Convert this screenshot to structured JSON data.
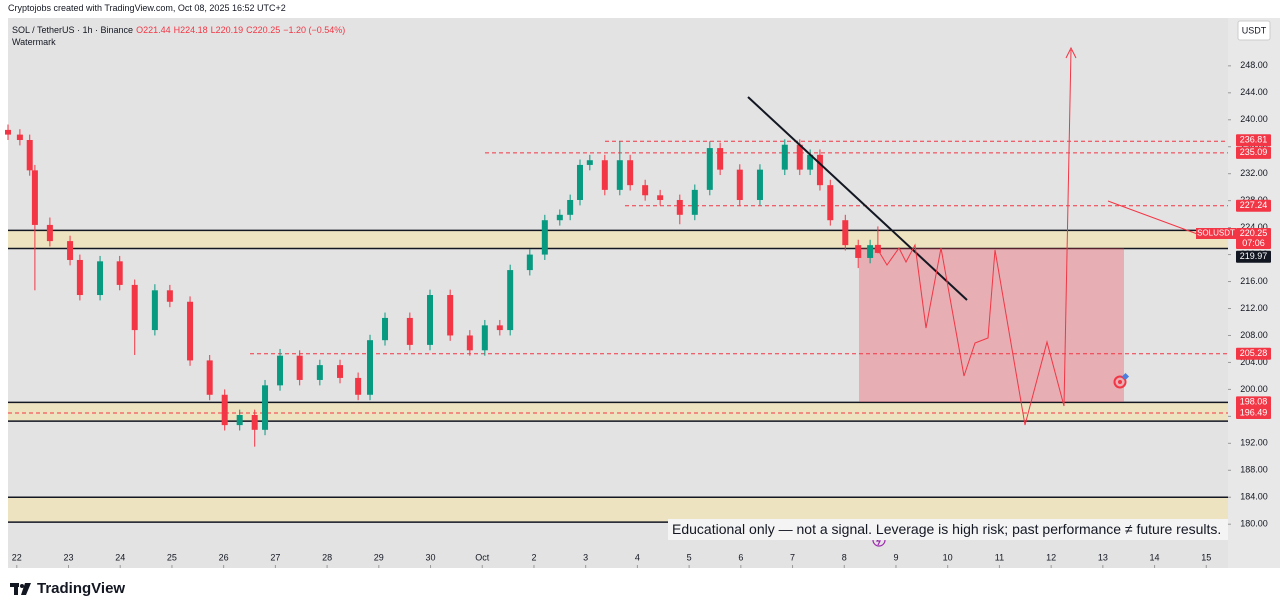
{
  "header": {
    "attribution": "Cryptojobs created with TradingView.com, Oct 08, 2025 16:52 UTC+2"
  },
  "chart_data": {
    "type": "candlestick",
    "symbol": "SOL / TetherUS · 1h · Binance",
    "quote": [
      "O221.44",
      "H224.18",
      "L220.19",
      "C220.25",
      "−1.20 (−0.54%)"
    ],
    "watermark": "Watermark",
    "currency": "USDT",
    "up_color": "#089981",
    "down_color": "#f23645",
    "x": [
      -0.17,
      0.06,
      0.25,
      0.35,
      0.64,
      1.03,
      1.22,
      1.61,
      1.99,
      2.28,
      2.67,
      2.96,
      3.35,
      3.73,
      4.02,
      4.31,
      4.6,
      4.8,
      5.09,
      5.47,
      5.86,
      6.25,
      6.6,
      6.83,
      7.12,
      7.6,
      7.99,
      8.38,
      8.76,
      9.05,
      9.34,
      9.54,
      9.92,
      10.21,
      10.5,
      10.7,
      10.89,
      11.08,
      11.37,
      11.66,
      11.86,
      12.15,
      12.44,
      12.82,
      13.11,
      13.4,
      13.6,
      13.98,
      14.37,
      14.85,
      15.14,
      15.34,
      15.53,
      15.73,
      16.02,
      16.27,
      16.5,
      16.65
    ],
    "open": [
      238.5,
      237.8,
      237,
      232.5,
      224.4,
      222,
      219.2,
      214,
      219,
      215.5,
      208.8,
      214.7,
      213,
      204.3,
      199.2,
      194.7,
      196.2,
      194,
      200.6,
      205,
      201.4,
      203.6,
      201.7,
      199.2,
      207.3,
      210.6,
      206.6,
      214,
      208,
      205.8,
      209.5,
      208.8,
      217.7,
      220,
      225.1,
      225.9,
      228.1,
      233.3,
      234,
      229.6,
      234,
      230.3,
      228.8,
      228.1,
      225.9,
      229.6,
      235.8,
      232.6,
      228.1,
      232.6,
      236.3,
      232.6,
      234.8,
      230.3,
      225.1,
      221.4,
      219.5,
      221.44
    ],
    "high": [
      239.3,
      238.6,
      237.8,
      233.3,
      225.5,
      222.8,
      220,
      219.8,
      219.8,
      216.3,
      215.6,
      215.5,
      213.8,
      205.1,
      200,
      197,
      197,
      201.4,
      206,
      205.8,
      204.4,
      204.4,
      202.5,
      208.1,
      211.4,
      211.4,
      214.8,
      214.8,
      208.8,
      210.3,
      210.3,
      218.5,
      220.8,
      225.9,
      226.7,
      228.9,
      234.1,
      234.8,
      234.8,
      236.8,
      234.8,
      231.1,
      229.6,
      228.9,
      230.4,
      236.8,
      236.6,
      233.4,
      233.4,
      237.1,
      237.1,
      235.6,
      235.6,
      231.1,
      225.9,
      222.2,
      222.2,
      224.18
    ],
    "low": [
      237,
      236.2,
      231.7,
      214.7,
      221.2,
      218.4,
      213.2,
      213.2,
      214.7,
      205.1,
      208,
      212.2,
      203.5,
      198.4,
      193.9,
      193.9,
      191.5,
      193.2,
      199.8,
      200.6,
      200.6,
      200.9,
      198.4,
      198.4,
      206.5,
      205.8,
      205.8,
      207.2,
      205,
      205,
      208,
      208,
      216.9,
      219.2,
      224.3,
      225.1,
      227.3,
      232.5,
      228.8,
      228.8,
      229.5,
      228,
      227.3,
      224.5,
      225.1,
      228.8,
      231.8,
      227.3,
      227.3,
      231.8,
      231.8,
      231.8,
      229.5,
      224.3,
      220.6,
      218,
      218.7,
      220.19
    ],
    "close": [
      237.8,
      237,
      232.5,
      224.4,
      222,
      219.2,
      214,
      219,
      215.5,
      208.8,
      214.7,
      213,
      204.3,
      199.2,
      194.7,
      196.2,
      194,
      200.6,
      205,
      201.4,
      203.6,
      201.7,
      199.2,
      207.3,
      210.6,
      206.6,
      214,
      208,
      205.8,
      209.5,
      208.8,
      217.7,
      220,
      225.1,
      225.9,
      228.1,
      233.3,
      234,
      229.6,
      234,
      230.3,
      228.8,
      228.1,
      225.9,
      229.6,
      235.8,
      232.6,
      228.1,
      232.6,
      236.3,
      232.6,
      234.8,
      230.3,
      225.1,
      221.4,
      219.5,
      221.4,
      220.25
    ],
    "xlim": [
      -0.17,
      23.42
    ],
    "xticks": [
      {
        "value": 0,
        "label": "22"
      },
      {
        "value": 1,
        "label": "23"
      },
      {
        "value": 2,
        "label": "24"
      },
      {
        "value": 3,
        "label": "25"
      },
      {
        "value": 4,
        "label": "26"
      },
      {
        "value": 5,
        "label": "27"
      },
      {
        "value": 6,
        "label": "28"
      },
      {
        "value": 7,
        "label": "29"
      },
      {
        "value": 8,
        "label": "30"
      },
      {
        "value": 9,
        "label": "Oct"
      },
      {
        "value": 10,
        "label": "2"
      },
      {
        "value": 11,
        "label": "3"
      },
      {
        "value": 12,
        "label": "4"
      },
      {
        "value": 13,
        "label": "5"
      },
      {
        "value": 14,
        "label": "6"
      },
      {
        "value": 15,
        "label": "7"
      },
      {
        "value": 16,
        "label": "8"
      },
      {
        "value": 17,
        "label": "9"
      },
      {
        "value": 18,
        "label": "10"
      },
      {
        "value": 19,
        "label": "11"
      },
      {
        "value": 20,
        "label": "12"
      },
      {
        "value": 21,
        "label": "13"
      },
      {
        "value": 22,
        "label": "14"
      },
      {
        "value": 23,
        "label": "15"
      }
    ],
    "ylim": [
      173.5,
      255.1
    ],
    "yticks": [
      {
        "value": 180,
        "label": "180.00"
      },
      {
        "value": 184,
        "label": "184.00"
      },
      {
        "value": 188,
        "label": "188.00"
      },
      {
        "value": 192,
        "label": "192.00"
      },
      {
        "value": 196,
        "label": "196.00"
      },
      {
        "value": 200,
        "label": "200.00"
      },
      {
        "value": 204,
        "label": "204.00"
      },
      {
        "value": 208,
        "label": "208.00"
      },
      {
        "value": 212,
        "label": "212.00"
      },
      {
        "value": 216,
        "label": "216.00"
      },
      {
        "value": 220,
        "label": "220.00"
      },
      {
        "value": 224,
        "label": "224.00"
      },
      {
        "value": 228,
        "label": "228.00"
      },
      {
        "value": 232,
        "label": "232.00"
      },
      {
        "value": 236,
        "label": "236.00"
      },
      {
        "value": 240,
        "label": "240.00"
      },
      {
        "value": 244,
        "label": "244.00"
      },
      {
        "value": 248,
        "label": "248.00"
      }
    ],
    "grid": false,
    "zone_color": "#f1e3b4",
    "zones": [
      [
        220.9,
        223.6
      ],
      [
        195.3,
        198.08
      ],
      [
        180.3,
        184
      ]
    ],
    "levels": [
      {
        "value": 236.81,
        "label": "236.81",
        "line": "dashed",
        "color": "#f23645"
      },
      {
        "value": 235.09,
        "label": "235.09",
        "line": "dashed",
        "color": "#f23645"
      },
      {
        "value": 227.24,
        "label": "227.24",
        "line": "dashed",
        "color": "#f23645"
      },
      {
        "value": 219.97,
        "label": "219.97",
        "line": "none",
        "color": "#131722"
      },
      {
        "value": 205.28,
        "label": "205.28",
        "line": "dashed",
        "color": "#f23645"
      },
      {
        "value": 198.08,
        "label": "198.08",
        "line": "none",
        "color": "#f23645"
      },
      {
        "value": 196.49,
        "label": "196.49",
        "line": "dashed",
        "color": "#f23645"
      }
    ],
    "last_price": {
      "symbol": "SOLUSDT",
      "value": 220.25,
      "label": "220.25",
      "countdown": "07:06",
      "color": "#f23645"
    },
    "disclaimer": "Educational only — not a signal. Leverage is high risk; past performance ≠ future results."
  },
  "footer": {
    "brand": "TradingView"
  }
}
